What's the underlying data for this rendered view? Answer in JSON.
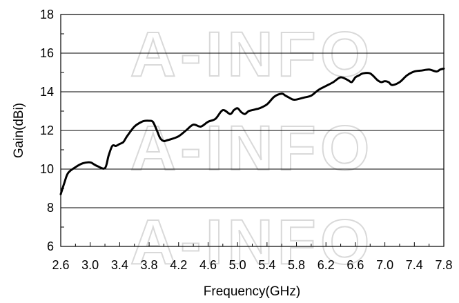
{
  "chart_data": {
    "type": "line",
    "title": "",
    "xlabel": "Frequency(GHz)",
    "ylabel": "Gain(dBi)",
    "xlim": [
      2.6,
      7.8
    ],
    "ylim": [
      6,
      18
    ],
    "x_ticks": [
      "2.6",
      "3.0",
      "3.4",
      "3.8",
      "4.2",
      "4.6",
      "5.0",
      "5.4",
      "5.8",
      "6.2",
      "6.6",
      "7.0",
      "7.4",
      "7.8"
    ],
    "y_ticks": [
      "6",
      "8",
      "10",
      "12",
      "14",
      "16",
      "18"
    ],
    "grid": "horizontal",
    "series_color": "#000000",
    "series": [
      {
        "x": [
          2.6,
          2.65,
          2.7,
          2.8,
          2.9,
          3.0,
          3.05,
          3.1,
          3.2,
          3.25,
          3.3,
          3.35,
          3.4,
          3.45,
          3.5,
          3.6,
          3.7,
          3.75,
          3.8,
          3.85,
          3.9,
          3.95,
          4.0,
          4.05,
          4.1,
          4.2,
          4.3,
          4.4,
          4.5,
          4.6,
          4.7,
          4.8,
          4.9,
          4.95,
          5.0,
          5.05,
          5.1,
          5.15,
          5.2,
          5.25,
          5.3,
          5.4,
          5.5,
          5.6,
          5.65,
          5.7,
          5.75,
          5.8,
          5.9,
          6.0,
          6.1,
          6.2,
          6.3,
          6.4,
          6.5,
          6.55,
          6.6,
          6.65,
          6.7,
          6.8,
          6.9,
          6.95,
          7.0,
          7.05,
          7.1,
          7.2,
          7.3,
          7.4,
          7.5,
          7.6,
          7.7,
          7.75,
          7.8
        ],
        "y": [
          8.7,
          9.3,
          9.8,
          10.1,
          10.3,
          10.35,
          10.25,
          10.15,
          10.05,
          10.7,
          11.2,
          11.2,
          11.3,
          11.4,
          11.7,
          12.2,
          12.45,
          12.5,
          12.5,
          12.45,
          12.05,
          11.6,
          11.45,
          11.5,
          11.55,
          11.7,
          12.0,
          12.3,
          12.2,
          12.45,
          12.6,
          13.05,
          12.85,
          13.05,
          13.15,
          12.95,
          12.85,
          13.0,
          13.05,
          13.1,
          13.15,
          13.35,
          13.75,
          13.9,
          13.8,
          13.7,
          13.6,
          13.6,
          13.7,
          13.8,
          14.1,
          14.3,
          14.5,
          14.75,
          14.6,
          14.5,
          14.75,
          14.85,
          14.95,
          14.95,
          14.6,
          14.5,
          14.55,
          14.5,
          14.35,
          14.5,
          14.85,
          15.05,
          15.1,
          15.15,
          15.05,
          15.15,
          15.2
        ]
      }
    ]
  },
  "watermark": "A-INFO"
}
